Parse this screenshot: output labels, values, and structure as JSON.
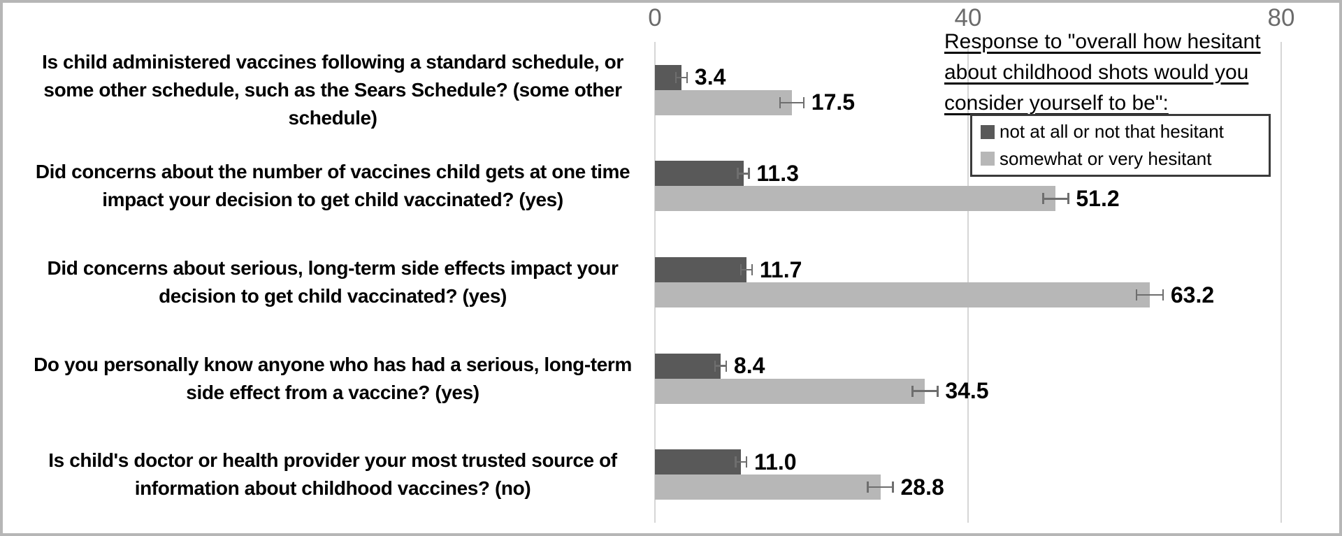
{
  "figure": {
    "background": "#ffffff",
    "frame_color": "#b6b6b6"
  },
  "chart_data": {
    "type": "bar",
    "orientation": "horizontal",
    "title": "",
    "value_axis": {
      "position": "top",
      "min": 0,
      "max": 80,
      "tick_labels": [
        "0",
        "40",
        "80"
      ],
      "tick_values": [
        0,
        40,
        80
      ],
      "gridlines": true
    },
    "categories": [
      "Is child administered vaccines following a standard schedule, or some other schedule, such as the Sears Schedule? (some other schedule)",
      "Did concerns about the number of vaccines child gets at one time impact your decision to get child vaccinated? (yes)",
      "Did concerns about serious, long-term side effects impact your decision to get child vaccinated? (yes)",
      "Do you personally know anyone who has had a serious, long-term side effect from a vaccine? (yes)",
      "Is child's doctor or health provider your most trusted source of information about childhood vaccines? (no)"
    ],
    "series": [
      {
        "name": "not at all or not that hesitant",
        "color": "#595959",
        "values": [
          3.4,
          11.3,
          11.7,
          8.4,
          11.0
        ],
        "data_labels": [
          "3.4",
          "11.3",
          "11.7",
          "8.4",
          "11.0"
        ],
        "error_bars": [
          0.7,
          0.7,
          0.7,
          0.7,
          0.7
        ]
      },
      {
        "name": "somewhat or very hesitant",
        "color": "#b7b7b7",
        "values": [
          17.5,
          51.2,
          63.2,
          34.5,
          28.8
        ],
        "data_labels": [
          "17.5",
          "51.2",
          "63.2",
          "34.5",
          "28.8"
        ],
        "error_bars": [
          1.5,
          1.6,
          1.7,
          1.6,
          1.6
        ]
      }
    ],
    "legend": {
      "position": "top-right",
      "title": "Response to \"overall how hesitant about childhood shots would you consider yourself to be\":",
      "title_lines": [
        "Response to \"overall how hesitant",
        "about childhood shots would you",
        "consider yourself to be\":"
      ],
      "entries": [
        "not at all or not that hesitant",
        "somewhat or very hesitant"
      ]
    },
    "styles": {
      "gridline_color": "#d6d6d6",
      "error_bar_color": "#6e6e6e",
      "tick_label_color": "#6b6b6b",
      "dark_bar_color": "#595959",
      "light_bar_color": "#b7b7b7"
    }
  }
}
